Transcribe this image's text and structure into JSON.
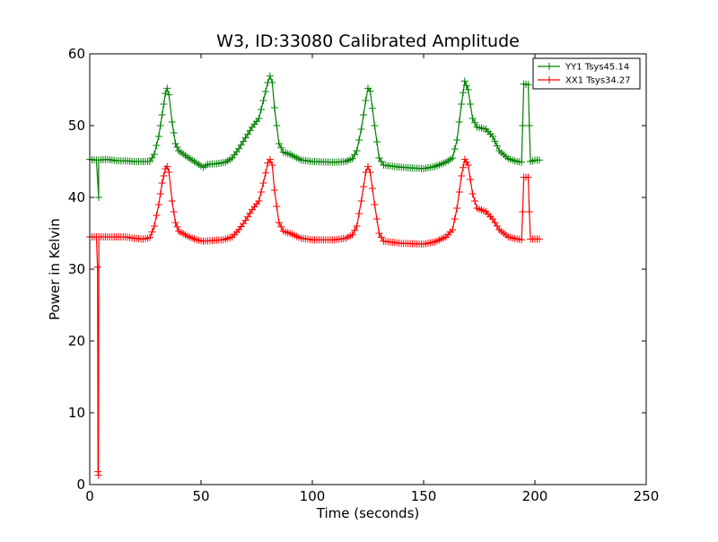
{
  "chart_data": {
    "type": "line",
    "title": "W3, ID:33080 Calibrated Amplitude",
    "xlabel": "Time (seconds)",
    "ylabel": "Power in Kelvin",
    "xlim": [
      0,
      250
    ],
    "ylim": [
      0,
      60
    ],
    "xticks": [
      0,
      50,
      100,
      150,
      200,
      250
    ],
    "yticks": [
      0,
      10,
      20,
      30,
      40,
      50,
      60
    ],
    "grid": false,
    "legend_position": "top-right",
    "marker": "+",
    "series": [
      {
        "name": "YY1 Tsys45.14",
        "color": "#008000",
        "points": [
          [
            0,
            45.3
          ],
          [
            3,
            45.2
          ],
          [
            4,
            40
          ],
          [
            4,
            45.2
          ],
          [
            8,
            45.3
          ],
          [
            12,
            45.1
          ],
          [
            16,
            45.1
          ],
          [
            20,
            45.0
          ],
          [
            24,
            45.0
          ],
          [
            27,
            45.0
          ],
          [
            29,
            46
          ],
          [
            31,
            48.5
          ],
          [
            32.5,
            51.5
          ],
          [
            34,
            54.5
          ],
          [
            34.8,
            55.2
          ],
          [
            35.6,
            54.3
          ],
          [
            37,
            50.5
          ],
          [
            38.5,
            47.5
          ],
          [
            40,
            46.5
          ],
          [
            44,
            45.6
          ],
          [
            48,
            44.8
          ],
          [
            51,
            44.2
          ],
          [
            53,
            44.6
          ],
          [
            57,
            44.7
          ],
          [
            61,
            44.9
          ],
          [
            64,
            45.5
          ],
          [
            67,
            46.8
          ],
          [
            70,
            48.3
          ],
          [
            73,
            49.8
          ],
          [
            76,
            51
          ],
          [
            78,
            53.5
          ],
          [
            80,
            56
          ],
          [
            81,
            56.9
          ],
          [
            82,
            56
          ],
          [
            83,
            52.5
          ],
          [
            85,
            47.5
          ],
          [
            87,
            46.3
          ],
          [
            90,
            46
          ],
          [
            95,
            45.2
          ],
          [
            100,
            45.0
          ],
          [
            110,
            44.9
          ],
          [
            115,
            45.0
          ],
          [
            118,
            45.4
          ],
          [
            120,
            46.5
          ],
          [
            122,
            49.5
          ],
          [
            124,
            53.5
          ],
          [
            125,
            55.2
          ],
          [
            126,
            54.8
          ],
          [
            128,
            50
          ],
          [
            130,
            45.5
          ],
          [
            132,
            44.5
          ],
          [
            140,
            44.2
          ],
          [
            150,
            44.0
          ],
          [
            155,
            44.3
          ],
          [
            160,
            44.9
          ],
          [
            163,
            45.5
          ],
          [
            165,
            48
          ],
          [
            167,
            53
          ],
          [
            168.5,
            56.2
          ],
          [
            170,
            55
          ],
          [
            172,
            51
          ],
          [
            174,
            49.8
          ],
          [
            178,
            49.5
          ],
          [
            181,
            48.5
          ],
          [
            184,
            46.5
          ],
          [
            188,
            45.4
          ],
          [
            192,
            45.0
          ],
          [
            194,
            44.9
          ],
          [
            194.5,
            50
          ],
          [
            195,
            55.8
          ],
          [
            197,
            55.7
          ],
          [
            197.5,
            50
          ],
          [
            198,
            45
          ],
          [
            200,
            45.2
          ],
          [
            202,
            45.2
          ]
        ]
      },
      {
        "name": "XX1 Tsys34.27",
        "color": "#ff0000",
        "points": [
          [
            0,
            34.5
          ],
          [
            3,
            34.5
          ],
          [
            3.5,
            30.3
          ],
          [
            3.7,
            1.8
          ],
          [
            3.9,
            1.3
          ],
          [
            4.1,
            34.5
          ],
          [
            8,
            34.5
          ],
          [
            12,
            34.5
          ],
          [
            16,
            34.5
          ],
          [
            20,
            34.3
          ],
          [
            24,
            34.2
          ],
          [
            27,
            34.4
          ],
          [
            29,
            36
          ],
          [
            31,
            39
          ],
          [
            32.5,
            42
          ],
          [
            34,
            44
          ],
          [
            34.8,
            44.3
          ],
          [
            35.6,
            43.5
          ],
          [
            37,
            39.5
          ],
          [
            38.5,
            36.5
          ],
          [
            40,
            35.3
          ],
          [
            44,
            34.6
          ],
          [
            48,
            34.1
          ],
          [
            51,
            33.9
          ],
          [
            55,
            34.0
          ],
          [
            60,
            34.1
          ],
          [
            64,
            34.5
          ],
          [
            67,
            35.5
          ],
          [
            70,
            36.8
          ],
          [
            73,
            38.3
          ],
          [
            76,
            39.5
          ],
          [
            78,
            42
          ],
          [
            80,
            44.8
          ],
          [
            81,
            45.3
          ],
          [
            82,
            44.5
          ],
          [
            83,
            41
          ],
          [
            85,
            36.5
          ],
          [
            87,
            35.3
          ],
          [
            90,
            35.0
          ],
          [
            95,
            34.3
          ],
          [
            100,
            34.1
          ],
          [
            110,
            34.1
          ],
          [
            115,
            34.3
          ],
          [
            118,
            34.8
          ],
          [
            120,
            36
          ],
          [
            122,
            39.5
          ],
          [
            124,
            43.5
          ],
          [
            125,
            44.3
          ],
          [
            126,
            43.5
          ],
          [
            128,
            39
          ],
          [
            130,
            35
          ],
          [
            132,
            33.9
          ],
          [
            140,
            33.6
          ],
          [
            150,
            33.5
          ],
          [
            155,
            33.8
          ],
          [
            160,
            34.5
          ],
          [
            163,
            35.5
          ],
          [
            165,
            38.5
          ],
          [
            167,
            43
          ],
          [
            168.5,
            45.3
          ],
          [
            170,
            44.5
          ],
          [
            172,
            40.5
          ],
          [
            174,
            38.5
          ],
          [
            178,
            38
          ],
          [
            181,
            37
          ],
          [
            184,
            35.5
          ],
          [
            188,
            34.5
          ],
          [
            192,
            34.2
          ],
          [
            194,
            34.1
          ],
          [
            194.5,
            38
          ],
          [
            195,
            42.8
          ],
          [
            197,
            42.8
          ],
          [
            197.5,
            38
          ],
          [
            198,
            34.2
          ],
          [
            200,
            34.2
          ],
          [
            202,
            34.2
          ]
        ]
      }
    ]
  }
}
